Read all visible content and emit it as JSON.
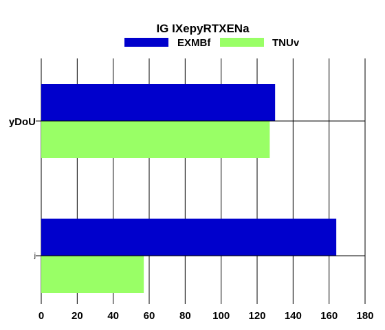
{
  "chart_data": {
    "type": "bar",
    "orientation": "horizontal",
    "title": "IG IXepyRTXENa",
    "xlabel": "",
    "ylabel": "",
    "categories": [
      "yDoU",
      "j"
    ],
    "series": [
      {
        "name": "EXMBf",
        "color": "#0000cc",
        "values": [
          130,
          164
        ]
      },
      {
        "name": "TNUv",
        "color": "#99ff66",
        "values": [
          127,
          57
        ]
      }
    ],
    "xlim": [
      0,
      180
    ],
    "xticks": [
      0,
      20,
      40,
      60,
      80,
      100,
      120,
      140,
      160,
      180
    ],
    "grid": {
      "vertical": true,
      "horizontal": false
    },
    "legend": "top-center"
  }
}
